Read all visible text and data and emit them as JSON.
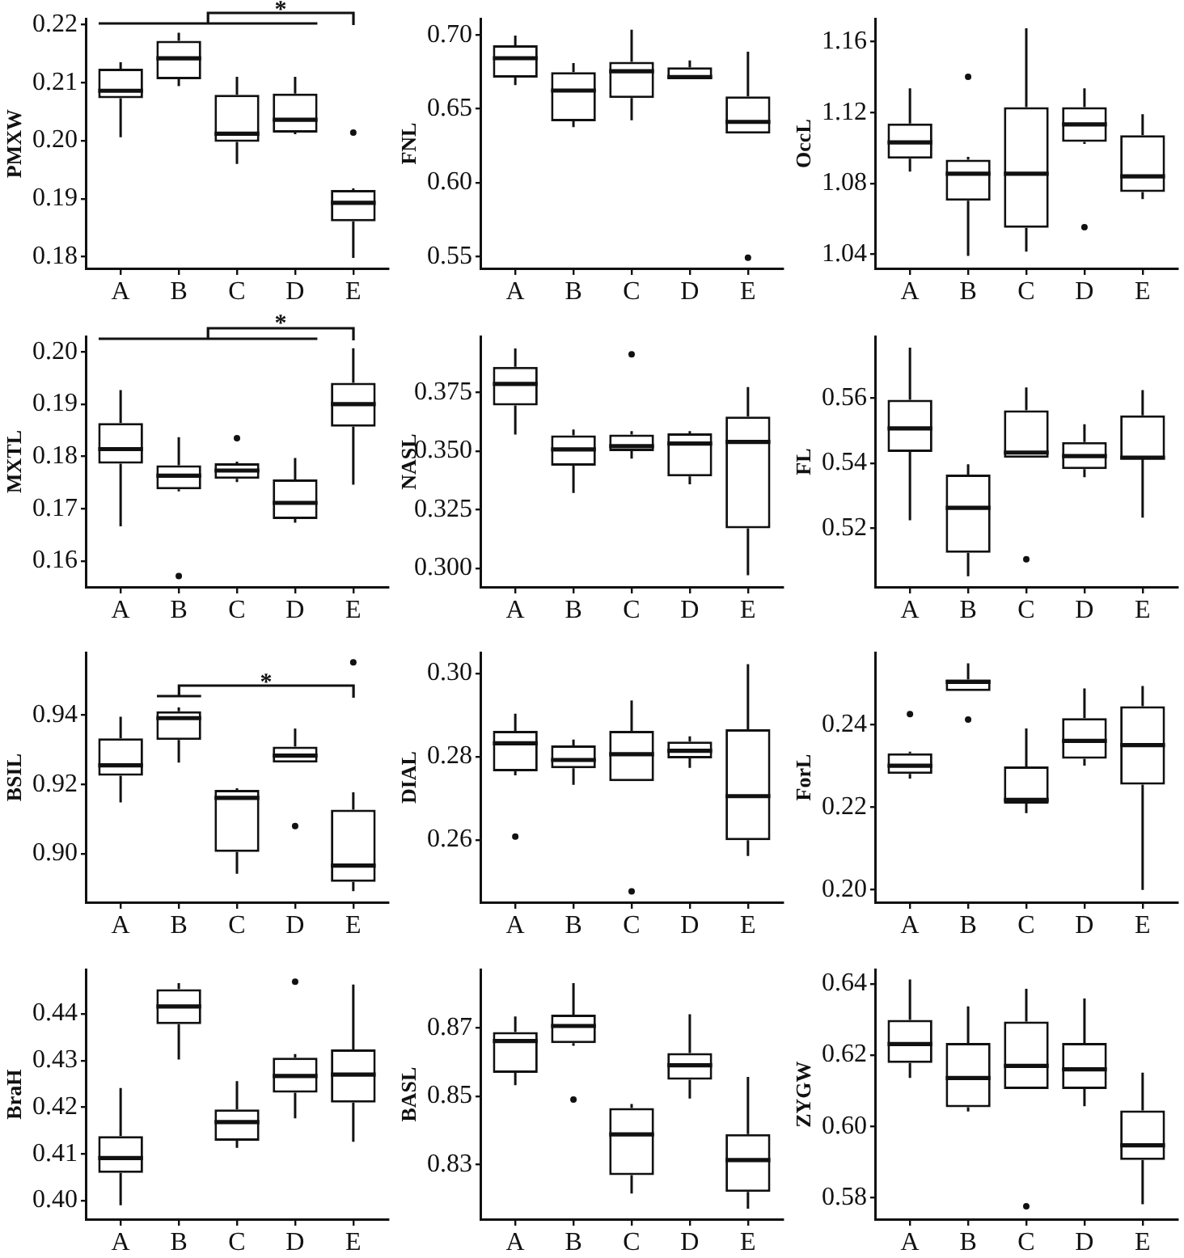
{
  "chart_data": [
    {
      "type": "box",
      "ylabel": "PMXW",
      "categories": [
        "A",
        "B",
        "C",
        "D",
        "E"
      ],
      "ylim": [
        0.178,
        0.221
      ],
      "yticks": [
        0.18,
        0.19,
        {
          "value": 0.2,
          "label": "0.20"
        },
        0.21,
        0.22
      ],
      "annotations": [
        "*"
      ],
      "boxes": [
        {
          "low": 0.2006,
          "q1": 0.2073,
          "median": 0.2086,
          "q3": 0.2124,
          "high": 0.2135
        },
        {
          "low": 0.2094,
          "q1": 0.2106,
          "median": 0.2142,
          "q3": 0.2172,
          "high": 0.2186
        },
        {
          "low": 0.196,
          "q1": 0.1998,
          "median": 0.2012,
          "q3": 0.2079,
          "high": 0.211
        },
        {
          "low": 0.2011,
          "q1": 0.2014,
          "median": 0.2036,
          "q3": 0.2081,
          "high": 0.211
        },
        {
          "low": 0.1798,
          "q1": 0.1861,
          "median": 0.1893,
          "q3": 0.1915,
          "high": 0.1918,
          "outliers": [
            0.2014
          ]
        }
      ]
    },
    {
      "type": "box",
      "ylabel": "FNL",
      "categories": [
        "A",
        "B",
        "C",
        "D",
        "E"
      ],
      "ylim": [
        0.542,
        0.711
      ],
      "yticks": [
        0.55,
        {
          "value": 0.6,
          "label": "0.60"
        },
        0.65,
        {
          "value": 0.7,
          "label": "0.70"
        }
      ],
      "boxes": [
        {
          "low": 0.6661,
          "q1": 0.6712,
          "median": 0.6843,
          "q3": 0.6931,
          "high": 0.6996
        },
        {
          "low": 0.6376,
          "q1": 0.6416,
          "median": 0.6624,
          "q3": 0.6748,
          "high": 0.681
        },
        {
          "low": 0.6423,
          "q1": 0.6573,
          "median": 0.6755,
          "q3": 0.6818,
          "high": 0.7036
        },
        {
          "low": 0.6704,
          "q1": 0.6704,
          "median": 0.6715,
          "q3": 0.6781,
          "high": 0.6828
        },
        {
          "low": 0.6332,
          "q1": 0.6332,
          "median": 0.6412,
          "q3": 0.6584,
          "high": 0.6887,
          "outliers": [
            0.5493
          ]
        }
      ]
    },
    {
      "type": "box",
      "ylabel": "OccL",
      "categories": [
        "A",
        "B",
        "C",
        "D",
        "E"
      ],
      "ylim": [
        1.032,
        1.173
      ],
      "yticks": [
        1.04,
        1.08,
        1.12,
        1.16
      ],
      "boxes": [
        {
          "low": 1.0867,
          "q1": 1.094,
          "median": 1.1032,
          "q3": 1.1139,
          "high": 1.1337
        },
        {
          "low": 1.0391,
          "q1": 1.0702,
          "median": 1.0855,
          "q3": 1.0934,
          "high": 1.095,
          "outliers": [
            1.1402
          ]
        },
        {
          "low": 1.0415,
          "q1": 1.055,
          "median": 1.0855,
          "q3": 1.1231,
          "high": 1.1676
        },
        {
          "low": 1.1023,
          "q1": 1.1035,
          "median": 1.1133,
          "q3": 1.1231,
          "high": 1.1337,
          "outliers": [
            1.0553
          ]
        },
        {
          "low": 1.0711,
          "q1": 1.0751,
          "median": 1.084,
          "q3": 1.1072,
          "high": 1.1191
        }
      ]
    },
    {
      "type": "box",
      "ylabel": "MXTL",
      "categories": [
        "A",
        "B",
        "C",
        "D",
        "E"
      ],
      "ylim": [
        0.155,
        0.203
      ],
      "yticks": [
        0.16,
        0.17,
        0.18,
        0.19,
        {
          "value": 0.2,
          "label": "0.20"
        }
      ],
      "annotations": [
        "*"
      ],
      "boxes": [
        {
          "low": 0.1666,
          "q1": 0.1786,
          "median": 0.1814,
          "q3": 0.1864,
          "high": 0.1927
        },
        {
          "low": 0.1733,
          "q1": 0.1737,
          "median": 0.1763,
          "q3": 0.1783,
          "high": 0.1837,
          "outliers": [
            0.1571
          ]
        },
        {
          "low": 0.1751,
          "q1": 0.1757,
          "median": 0.1773,
          "q3": 0.1787,
          "high": 0.179,
          "outliers": [
            0.1835
          ]
        },
        {
          "low": 0.1673,
          "q1": 0.168,
          "median": 0.1711,
          "q3": 0.1756,
          "high": 0.1797
        },
        {
          "low": 0.1746,
          "q1": 0.1857,
          "median": 0.19,
          "q3": 0.1941,
          "high": 0.2007
        }
      ]
    },
    {
      "type": "box",
      "ylabel": "NASL",
      "categories": [
        "A",
        "B",
        "C",
        "D",
        "E"
      ],
      "ylim": [
        0.292,
        0.399
      ],
      "yticks": [
        {
          "value": 0.3,
          "label": "0.300"
        },
        0.325,
        {
          "value": 0.35,
          "label": "0.350"
        },
        0.375
      ],
      "boxes": [
        {
          "low": 0.3571,
          "q1": 0.3695,
          "median": 0.3787,
          "q3": 0.386,
          "high": 0.3938
        },
        {
          "low": 0.3321,
          "q1": 0.3438,
          "median": 0.3507,
          "q3": 0.3567,
          "high": 0.3592
        },
        {
          "low": 0.3468,
          "q1": 0.35,
          "median": 0.3521,
          "q3": 0.3571,
          "high": 0.3585,
          "outliers": [
            0.3913
          ]
        },
        {
          "low": 0.3358,
          "q1": 0.3392,
          "median": 0.3532,
          "q3": 0.3576,
          "high": 0.3585
        },
        {
          "low": 0.297,
          "q1": 0.317,
          "median": 0.3539,
          "q3": 0.3647,
          "high": 0.3773
        }
      ]
    },
    {
      "type": "box",
      "ylabel": "FL",
      "categories": [
        "A",
        "B",
        "C",
        "D",
        "E"
      ],
      "ylim": [
        0.502,
        0.579
      ],
      "yticks": [
        0.52,
        0.54,
        0.56
      ],
      "boxes": [
        {
          "low": 0.5225,
          "q1": 0.5435,
          "median": 0.5507,
          "q3": 0.5595,
          "high": 0.5755
        },
        {
          "low": 0.5053,
          "q1": 0.5125,
          "median": 0.5263,
          "q3": 0.5365,
          "high": 0.5397
        },
        {
          "low": 0.5417,
          "q1": 0.5417,
          "median": 0.5433,
          "q3": 0.5563,
          "high": 0.5633,
          "outliers": [
            0.5105
          ]
        },
        {
          "low": 0.5357,
          "q1": 0.5382,
          "median": 0.5422,
          "q3": 0.5465,
          "high": 0.552
        },
        {
          "low": 0.5233,
          "q1": 0.5413,
          "median": 0.5417,
          "q3": 0.5547,
          "high": 0.5625
        }
      ]
    },
    {
      "type": "box",
      "ylabel": "BSIL",
      "categories": [
        "A",
        "B",
        "C",
        "D",
        "E"
      ],
      "ylim": [
        0.886,
        0.958
      ],
      "yticks": [
        {
          "value": 0.9,
          "label": "0.90"
        },
        0.92,
        0.94
      ],
      "annotations": [
        "*"
      ],
      "boxes": [
        {
          "low": 0.9148,
          "q1": 0.9225,
          "median": 0.9255,
          "q3": 0.9333,
          "high": 0.9395
        },
        {
          "low": 0.9263,
          "q1": 0.9328,
          "median": 0.9391,
          "q3": 0.9411,
          "high": 0.9422
        },
        {
          "low": 0.8942,
          "q1": 0.9005,
          "median": 0.9161,
          "q3": 0.9184,
          "high": 0.9189
        },
        {
          "low": 0.9263,
          "q1": 0.9263,
          "median": 0.9283,
          "q3": 0.9309,
          "high": 0.9361,
          "outliers": [
            0.908
          ]
        },
        {
          "low": 0.8892,
          "q1": 0.8919,
          "median": 0.8966,
          "q3": 0.9127,
          "high": 0.9177,
          "outliers": [
            0.9552
          ]
        }
      ]
    },
    {
      "type": "box",
      "ylabel": "DIAL",
      "categories": [
        "A",
        "B",
        "C",
        "D",
        "E"
      ],
      "ylim": [
        0.245,
        0.305
      ],
      "yticks": [
        0.26,
        0.28,
        {
          "value": 0.3,
          "label": "0.30"
        }
      ],
      "boxes": [
        {
          "low": 0.2755,
          "q1": 0.2765,
          "median": 0.2832,
          "q3": 0.2862,
          "high": 0.2903,
          "outliers": [
            0.2608
          ]
        },
        {
          "low": 0.2732,
          "q1": 0.2772,
          "median": 0.2792,
          "q3": 0.2827,
          "high": 0.2841
        },
        {
          "low": 0.2741,
          "q1": 0.2741,
          "median": 0.2806,
          "q3": 0.2862,
          "high": 0.2935,
          "outliers": [
            0.2476
          ]
        },
        {
          "low": 0.2773,
          "q1": 0.2796,
          "median": 0.2814,
          "q3": 0.2836,
          "high": 0.2849
        },
        {
          "low": 0.2561,
          "q1": 0.2599,
          "median": 0.2705,
          "q3": 0.2866,
          "high": 0.3022
        }
      ]
    },
    {
      "type": "box",
      "ylabel": "ForL",
      "categories": [
        "A",
        "B",
        "C",
        "D",
        "E"
      ],
      "ylim": [
        0.197,
        0.2575
      ],
      "yticks": [
        {
          "value": 0.2,
          "label": "0.20"
        },
        0.22,
        0.24
      ],
      "boxes": [
        {
          "low": 0.227,
          "q1": 0.2281,
          "median": 0.2301,
          "q3": 0.2331,
          "high": 0.2335,
          "outliers": [
            0.2426
          ]
        },
        {
          "low": 0.2482,
          "q1": 0.2482,
          "median": 0.2504,
          "q3": 0.251,
          "high": 0.2549,
          "outliers": [
            0.2413
          ]
        },
        {
          "low": 0.2186,
          "q1": 0.2209,
          "median": 0.2218,
          "q3": 0.2299,
          "high": 0.2391
        },
        {
          "low": 0.2301,
          "q1": 0.2318,
          "median": 0.2361,
          "q3": 0.2416,
          "high": 0.2488
        },
        {
          "low": 0.2,
          "q1": 0.2255,
          "median": 0.2351,
          "q3": 0.2445,
          "high": 0.2494
        }
      ]
    },
    {
      "type": "box",
      "ylabel": "BraH",
      "categories": [
        "A",
        "B",
        "C",
        "D",
        "E"
      ],
      "ylim": [
        0.396,
        0.4495
      ],
      "yticks": [
        {
          "value": 0.4,
          "label": "0.40"
        },
        0.41,
        0.42,
        0.43,
        0.44
      ],
      "boxes": [
        {
          "low": 0.399,
          "q1": 0.4059,
          "median": 0.4091,
          "q3": 0.4138,
          "high": 0.4241
        },
        {
          "low": 0.4302,
          "q1": 0.4378,
          "median": 0.4416,
          "q3": 0.4453,
          "high": 0.4466
        },
        {
          "low": 0.4113,
          "q1": 0.4128,
          "median": 0.4168,
          "q3": 0.4195,
          "high": 0.4256
        },
        {
          "low": 0.4176,
          "q1": 0.4231,
          "median": 0.4267,
          "q3": 0.4306,
          "high": 0.4314,
          "outliers": [
            0.4469
          ]
        },
        {
          "low": 0.4126,
          "q1": 0.421,
          "median": 0.427,
          "q3": 0.4324,
          "high": 0.4463
        }
      ]
    },
    {
      "type": "box",
      "ylabel": "BASL",
      "categories": [
        "A",
        "B",
        "C",
        "D",
        "E"
      ],
      "ylim": [
        0.814,
        0.887
      ],
      "yticks": [
        0.83,
        0.85,
        0.87
      ],
      "boxes": [
        {
          "low": 0.8532,
          "q1": 0.8568,
          "median": 0.8661,
          "q3": 0.8687,
          "high": 0.8733
        },
        {
          "low": 0.8647,
          "q1": 0.8655,
          "median": 0.8705,
          "q3": 0.8738,
          "high": 0.883,
          "outliers": [
            0.849
          ]
        },
        {
          "low": 0.8215,
          "q1": 0.8269,
          "median": 0.8388,
          "q3": 0.8465,
          "high": 0.8477
        },
        {
          "low": 0.8493,
          "q1": 0.8548,
          "median": 0.859,
          "q3": 0.8626,
          "high": 0.8739
        },
        {
          "low": 0.8171,
          "q1": 0.822,
          "median": 0.8313,
          "q3": 0.8389,
          "high": 0.8556
        }
      ]
    },
    {
      "type": "box",
      "ylabel": "ZYGW",
      "categories": [
        "A",
        "B",
        "C",
        "D",
        "E"
      ],
      "ylim": [
        0.574,
        0.644
      ],
      "yticks": [
        0.58,
        {
          "value": 0.6,
          "label": "0.60"
        },
        0.62,
        0.64
      ],
      "boxes": [
        {
          "low": 0.6136,
          "q1": 0.6178,
          "median": 0.6231,
          "q3": 0.6299,
          "high": 0.6412
        },
        {
          "low": 0.6042,
          "q1": 0.6054,
          "median": 0.6136,
          "q3": 0.6234,
          "high": 0.6337
        },
        {
          "low": 0.6105,
          "q1": 0.6105,
          "median": 0.617,
          "q3": 0.6294,
          "high": 0.6386,
          "outliers": [
            0.5776
          ]
        },
        {
          "low": 0.6057,
          "q1": 0.6105,
          "median": 0.616,
          "q3": 0.6234,
          "high": 0.6359
        },
        {
          "low": 0.5782,
          "q1": 0.5906,
          "median": 0.5947,
          "q3": 0.6045,
          "high": 0.6151
        }
      ]
    }
  ]
}
